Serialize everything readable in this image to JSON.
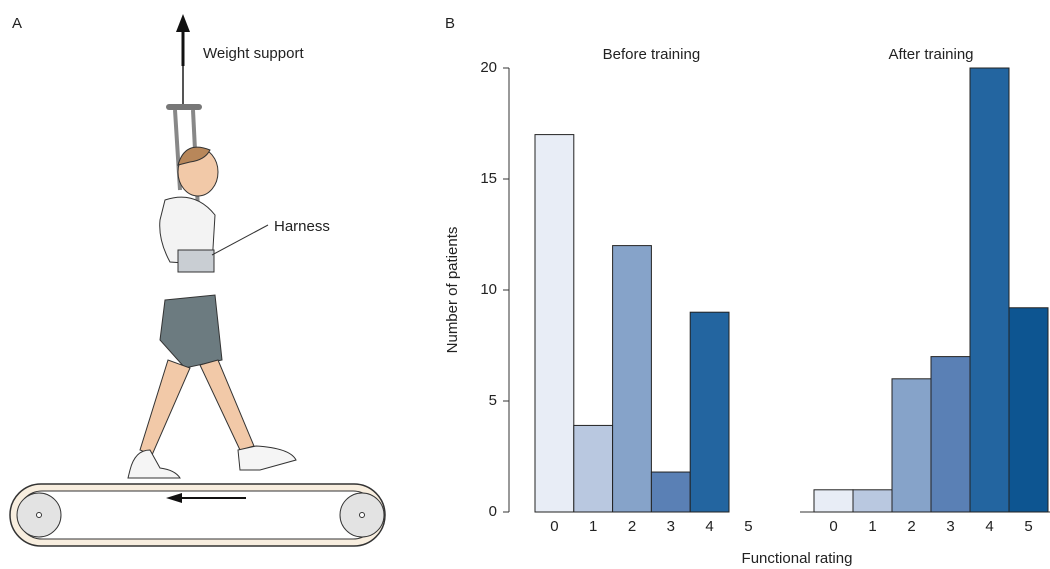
{
  "figure": {
    "panel_a": "A",
    "panel_b": "B",
    "weight_support": "Weight support",
    "harness": "Harness",
    "x_label": "Functional rating",
    "y_label": "Number of patients"
  },
  "chart_data": [
    {
      "type": "bar",
      "title": "Before training",
      "categories": [
        "0",
        "1",
        "2",
        "3",
        "4",
        "5"
      ],
      "values": [
        17,
        3.9,
        12,
        1.8,
        9,
        0
      ],
      "colors": [
        "#e8edf6",
        "#b9c8e0",
        "#86a3c9",
        "#5a80b5",
        "#2365a0",
        "#0d5591"
      ],
      "ylim": [
        0,
        20
      ],
      "yticks": [
        0,
        5,
        10,
        15,
        20
      ]
    },
    {
      "type": "bar",
      "title": "After training",
      "categories": [
        "0",
        "1",
        "2",
        "3",
        "4",
        "5"
      ],
      "values": [
        1,
        1,
        6,
        7,
        20,
        9.2
      ],
      "colors": [
        "#e8edf6",
        "#b9c8e0",
        "#86a3c9",
        "#5a80b5",
        "#2365a0",
        "#0d5591"
      ],
      "ylim": [
        0,
        20
      ]
    }
  ]
}
